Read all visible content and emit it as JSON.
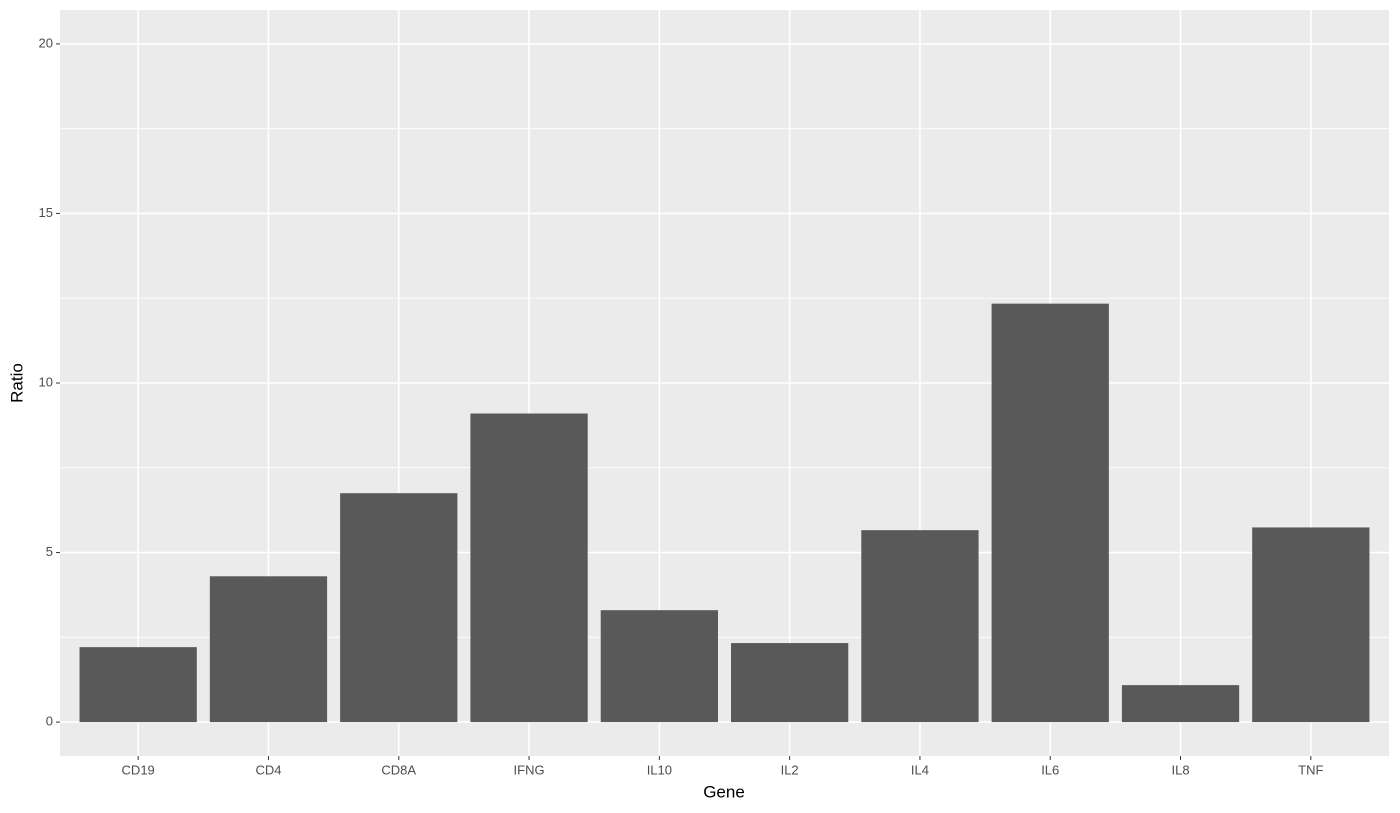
{
  "chart_data": {
    "type": "bar",
    "x_label": "Gene",
    "y_label": "Ratio",
    "categories": [
      "CD19",
      "CD4",
      "CD8A",
      "IFNG",
      "IL10",
      "IL2",
      "IL4",
      "IL6",
      "IL8",
      "TNF"
    ],
    "values": [
      2.21,
      4.3,
      6.75,
      9.1,
      3.3,
      2.33,
      5.66,
      12.34,
      1.09,
      5.74
    ],
    "color": "#595959",
    "ylim": [
      -1,
      21
    ],
    "yticks": [
      0,
      5,
      10,
      15,
      20
    ],
    "grid": true
  }
}
